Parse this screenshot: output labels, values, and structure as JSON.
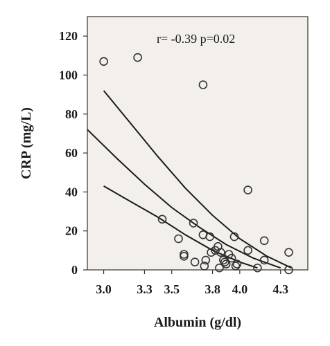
{
  "chart_data": {
    "type": "scatter",
    "xlabel": "Albumin (g/dl)",
    "ylabel": "CRP (mg/L)",
    "annotation": "r= -0.39 p=0.02",
    "xlim": [
      2.88,
      4.5
    ],
    "ylim": [
      0,
      130
    ],
    "x_ticks": [
      3.0,
      3.3,
      3.5,
      3.8,
      4.0,
      4.3
    ],
    "x_tick_labels": [
      "3.0",
      "3.3",
      "3.5",
      "3.8",
      "4.0",
      "4.3"
    ],
    "y_ticks": [
      0,
      20,
      40,
      60,
      80,
      100,
      120
    ],
    "y_tick_labels": [
      "0",
      "20",
      "40",
      "60",
      "80",
      "100",
      "120"
    ],
    "grid": false,
    "plot_background": "#f3f0ec",
    "marker_color": "#333333",
    "points": [
      {
        "x": 3.0,
        "y": 107
      },
      {
        "x": 3.25,
        "y": 109
      },
      {
        "x": 3.73,
        "y": 95
      },
      {
        "x": 3.43,
        "y": 26
      },
      {
        "x": 3.55,
        "y": 16
      },
      {
        "x": 3.59,
        "y": 8
      },
      {
        "x": 3.59,
        "y": 7
      },
      {
        "x": 3.66,
        "y": 24
      },
      {
        "x": 3.67,
        "y": 4
      },
      {
        "x": 3.73,
        "y": 18
      },
      {
        "x": 3.74,
        "y": 2
      },
      {
        "x": 3.75,
        "y": 5
      },
      {
        "x": 3.78,
        "y": 17
      },
      {
        "x": 3.79,
        "y": 9
      },
      {
        "x": 3.82,
        "y": 10
      },
      {
        "x": 3.84,
        "y": 12
      },
      {
        "x": 3.85,
        "y": 1
      },
      {
        "x": 3.86,
        "y": 9
      },
      {
        "x": 3.88,
        "y": 5
      },
      {
        "x": 3.89,
        "y": 4
      },
      {
        "x": 3.9,
        "y": 3
      },
      {
        "x": 3.92,
        "y": 8
      },
      {
        "x": 3.94,
        "y": 6
      },
      {
        "x": 3.96,
        "y": 17
      },
      {
        "x": 3.97,
        "y": 2
      },
      {
        "x": 3.98,
        "y": 3
      },
      {
        "x": 4.06,
        "y": 41
      },
      {
        "x": 4.06,
        "y": 10
      },
      {
        "x": 4.13,
        "y": 1
      },
      {
        "x": 4.18,
        "y": 15
      },
      {
        "x": 4.18,
        "y": 5
      },
      {
        "x": 4.36,
        "y": 9
      },
      {
        "x": 4.36,
        "y": 0
      }
    ],
    "curves": [
      {
        "name": "upper",
        "points": [
          [
            3.0,
            92
          ],
          [
            3.2,
            75
          ],
          [
            3.4,
            58
          ],
          [
            3.6,
            42
          ],
          [
            3.8,
            28
          ],
          [
            4.0,
            16
          ],
          [
            4.2,
            7
          ],
          [
            4.38,
            1
          ]
        ]
      },
      {
        "name": "fit",
        "points": [
          [
            2.88,
            72
          ],
          [
            3.1,
            57
          ],
          [
            3.3,
            44
          ],
          [
            3.5,
            32
          ],
          [
            3.7,
            22
          ],
          [
            3.9,
            13
          ],
          [
            4.1,
            6
          ],
          [
            4.3,
            1
          ]
        ]
      },
      {
        "name": "lower",
        "points": [
          [
            3.0,
            43
          ],
          [
            3.2,
            35
          ],
          [
            3.4,
            27
          ],
          [
            3.6,
            18
          ],
          [
            3.8,
            10
          ],
          [
            4.0,
            4
          ],
          [
            4.13,
            1
          ]
        ]
      }
    ]
  }
}
